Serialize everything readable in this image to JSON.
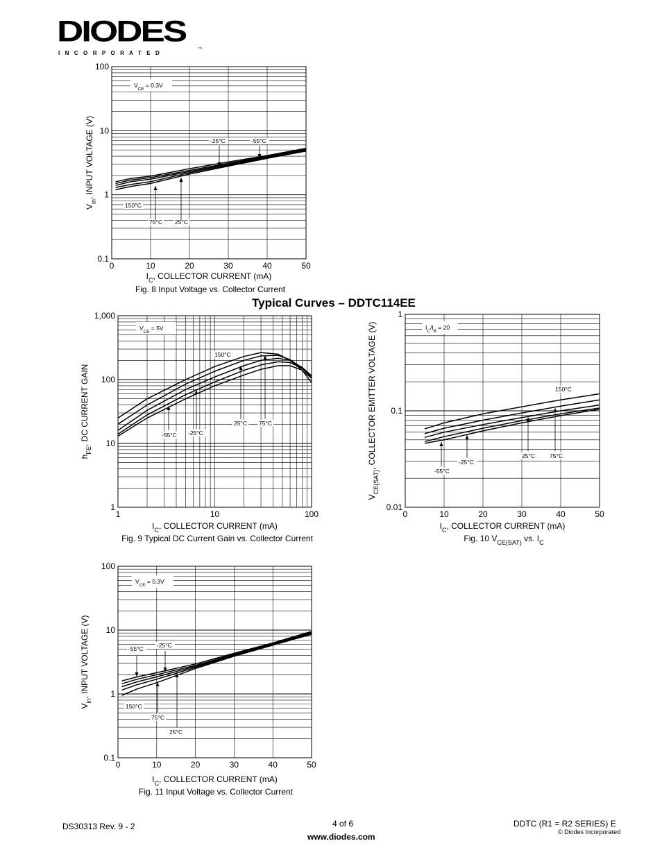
{
  "header": {
    "logo_text": "DIODES",
    "logo_sub": "I N C O R P O R A T E D",
    "logo_tm": "™"
  },
  "section_title": "Typical Curves – DDTC114EE",
  "footer": {
    "left": "DS30313 Rev. 9 - 2",
    "center": "4 of 6",
    "url": "www.diodes.com",
    "right": "DDTC (R1 = R2 SERIES)  E",
    "copyright": "© Diodes Incorporated"
  },
  "chart_data": [
    {
      "id": "fig8",
      "type": "line",
      "caption": "Fig. 8 Input Voltage vs. Collector Current",
      "ylabel": "V_in, INPUT VOLTAGE (V)",
      "xlabel": "I_C, COLLECTOR CURRENT (mA)",
      "xscale": "linear",
      "yscale": "log",
      "xlim": [
        0,
        50
      ],
      "ylim": [
        0.1,
        100
      ],
      "xticks": [
        "0",
        "10",
        "20",
        "30",
        "40",
        "50"
      ],
      "yticks": [
        "0.1",
        "1",
        "10",
        "100"
      ],
      "condition": "V_CE = 0.3V",
      "series": [
        {
          "name": "150°C",
          "x": [
            1,
            5,
            10,
            20,
            30,
            40,
            50
          ],
          "values": [
            1.2,
            1.35,
            1.5,
            2.1,
            2.8,
            3.7,
            4.8
          ]
        },
        {
          "name": "75°C",
          "x": [
            1,
            5,
            10,
            20,
            30,
            40,
            50
          ],
          "values": [
            1.3,
            1.45,
            1.6,
            2.2,
            2.9,
            3.8,
            4.9
          ]
        },
        {
          "name": "25°C",
          "x": [
            1,
            5,
            10,
            20,
            30,
            40,
            50
          ],
          "values": [
            1.4,
            1.6,
            1.75,
            2.3,
            3.0,
            3.9,
            5.0
          ]
        },
        {
          "name": "-25°C",
          "x": [
            1,
            5,
            10,
            20,
            30,
            40,
            50
          ],
          "values": [
            1.5,
            1.7,
            1.85,
            2.4,
            3.1,
            4.0,
            5.1
          ]
        },
        {
          "name": "-55°C",
          "x": [
            1,
            5,
            10,
            20,
            30,
            40,
            50
          ],
          "values": [
            1.6,
            1.8,
            1.95,
            2.55,
            3.25,
            4.1,
            5.3
          ]
        }
      ]
    },
    {
      "id": "fig9",
      "type": "line",
      "caption": "Fig. 9  Typical DC Current Gain vs. Collector Current",
      "ylabel": "h_FE, DC CURRENT GAIN",
      "xlabel": "I_C, COLLECTOR CURRENT (mA)",
      "xscale": "log",
      "yscale": "log",
      "xlim": [
        1,
        100
      ],
      "ylim": [
        1,
        1000
      ],
      "xticks": [
        "1",
        "10",
        "100"
      ],
      "yticks": [
        "1",
        "10",
        "100",
        "1,000"
      ],
      "condition": "V_CE = 5V",
      "series": [
        {
          "name": "150°C",
          "x": [
            1,
            2,
            5,
            10,
            20,
            30,
            45,
            60,
            80,
            100
          ],
          "values": [
            25,
            50,
            100,
            160,
            230,
            265,
            250,
            200,
            140,
            90
          ]
        },
        {
          "name": "75°C",
          "x": [
            1,
            2,
            5,
            10,
            20,
            30,
            45,
            60,
            80,
            100
          ],
          "values": [
            20,
            40,
            85,
            135,
            200,
            235,
            240,
            205,
            150,
            110
          ]
        },
        {
          "name": "25°C",
          "x": [
            1,
            2,
            5,
            10,
            20,
            30,
            45,
            60,
            80,
            100
          ],
          "values": [
            16,
            33,
            70,
            110,
            165,
            200,
            215,
            200,
            155,
            115
          ]
        },
        {
          "name": "-25°C",
          "x": [
            1,
            2,
            5,
            10,
            20,
            30,
            45,
            60,
            80,
            100
          ],
          "values": [
            14,
            28,
            58,
            92,
            140,
            170,
            190,
            185,
            150,
            110
          ]
        },
        {
          "name": "-55°C",
          "x": [
            1,
            2,
            5,
            10,
            20,
            30,
            45,
            60,
            80,
            100
          ],
          "values": [
            13,
            25,
            50,
            80,
            118,
            145,
            165,
            165,
            140,
            105
          ]
        }
      ]
    },
    {
      "id": "fig10",
      "type": "line",
      "caption": "Fig. 10  V_CE(SAT) vs. I_C",
      "ylabel": "V_CE(SAT), COLLECTOR EMITTER VOLTAGE (V)",
      "xlabel": "I_C, COLLECTOR CURRENT (mA)",
      "xscale": "linear",
      "yscale": "log",
      "xlim": [
        0,
        50
      ],
      "ylim": [
        0.01,
        1
      ],
      "xticks": [
        "0",
        "10",
        "20",
        "30",
        "40",
        "50"
      ],
      "yticks": [
        "0.01",
        "0.1",
        "1"
      ],
      "condition": "I_C/I_B = 20",
      "series": [
        {
          "name": "150°C",
          "x": [
            5,
            10,
            20,
            30,
            40,
            50
          ],
          "values": [
            0.065,
            0.075,
            0.093,
            0.11,
            0.13,
            0.15
          ]
        },
        {
          "name": "75°C",
          "x": [
            5,
            10,
            20,
            30,
            40,
            50
          ],
          "values": [
            0.058,
            0.066,
            0.08,
            0.095,
            0.112,
            0.13
          ]
        },
        {
          "name": "25°C",
          "x": [
            5,
            10,
            20,
            30,
            40,
            50
          ],
          "values": [
            0.053,
            0.06,
            0.072,
            0.085,
            0.1,
            0.115
          ]
        },
        {
          "name": "-25°C",
          "x": [
            5,
            10,
            20,
            30,
            40,
            50
          ],
          "values": [
            0.048,
            0.054,
            0.066,
            0.079,
            0.093,
            0.107
          ]
        },
        {
          "name": "-55°C",
          "x": [
            5,
            10,
            20,
            30,
            40,
            50
          ],
          "values": [
            0.046,
            0.05,
            0.062,
            0.075,
            0.089,
            0.104
          ]
        }
      ]
    },
    {
      "id": "fig11",
      "type": "line",
      "caption": "Fig. 11  Input Voltage vs. Collector Current",
      "ylabel": "V_in, INPUT VOLTAGE (V)",
      "xlabel": "I_C, COLLECTOR CURRENT (mA)",
      "xscale": "linear",
      "yscale": "log",
      "xlim": [
        0,
        50
      ],
      "ylim": [
        0.1,
        100
      ],
      "xticks": [
        "0",
        "10",
        "20",
        "30",
        "40",
        "50"
      ],
      "yticks": [
        "0.1",
        "1",
        "10",
        "100"
      ],
      "condition": "V_CE = 0.3V",
      "series": [
        {
          "name": "150°C",
          "x": [
            1,
            5,
            10,
            20,
            30,
            40,
            50
          ],
          "values": [
            0.95,
            1.2,
            1.5,
            2.5,
            3.9,
            5.8,
            8.6
          ]
        },
        {
          "name": "75°C",
          "x": [
            1,
            5,
            10,
            20,
            30,
            40,
            50
          ],
          "values": [
            1.15,
            1.4,
            1.7,
            2.6,
            4.0,
            5.9,
            8.8
          ]
        },
        {
          "name": "25°C",
          "x": [
            1,
            5,
            10,
            20,
            30,
            40,
            50
          ],
          "values": [
            1.3,
            1.55,
            1.85,
            2.7,
            4.1,
            6.0,
            9.0
          ]
        },
        {
          "name": "-25°C",
          "x": [
            1,
            5,
            10,
            20,
            30,
            40,
            50
          ],
          "values": [
            1.45,
            1.7,
            2.0,
            2.8,
            4.2,
            6.1,
            9.2
          ]
        },
        {
          "name": "-55°C",
          "x": [
            1,
            5,
            10,
            20,
            30,
            40,
            50
          ],
          "values": [
            1.6,
            1.85,
            2.15,
            2.95,
            4.35,
            6.3,
            9.5
          ]
        }
      ]
    }
  ]
}
